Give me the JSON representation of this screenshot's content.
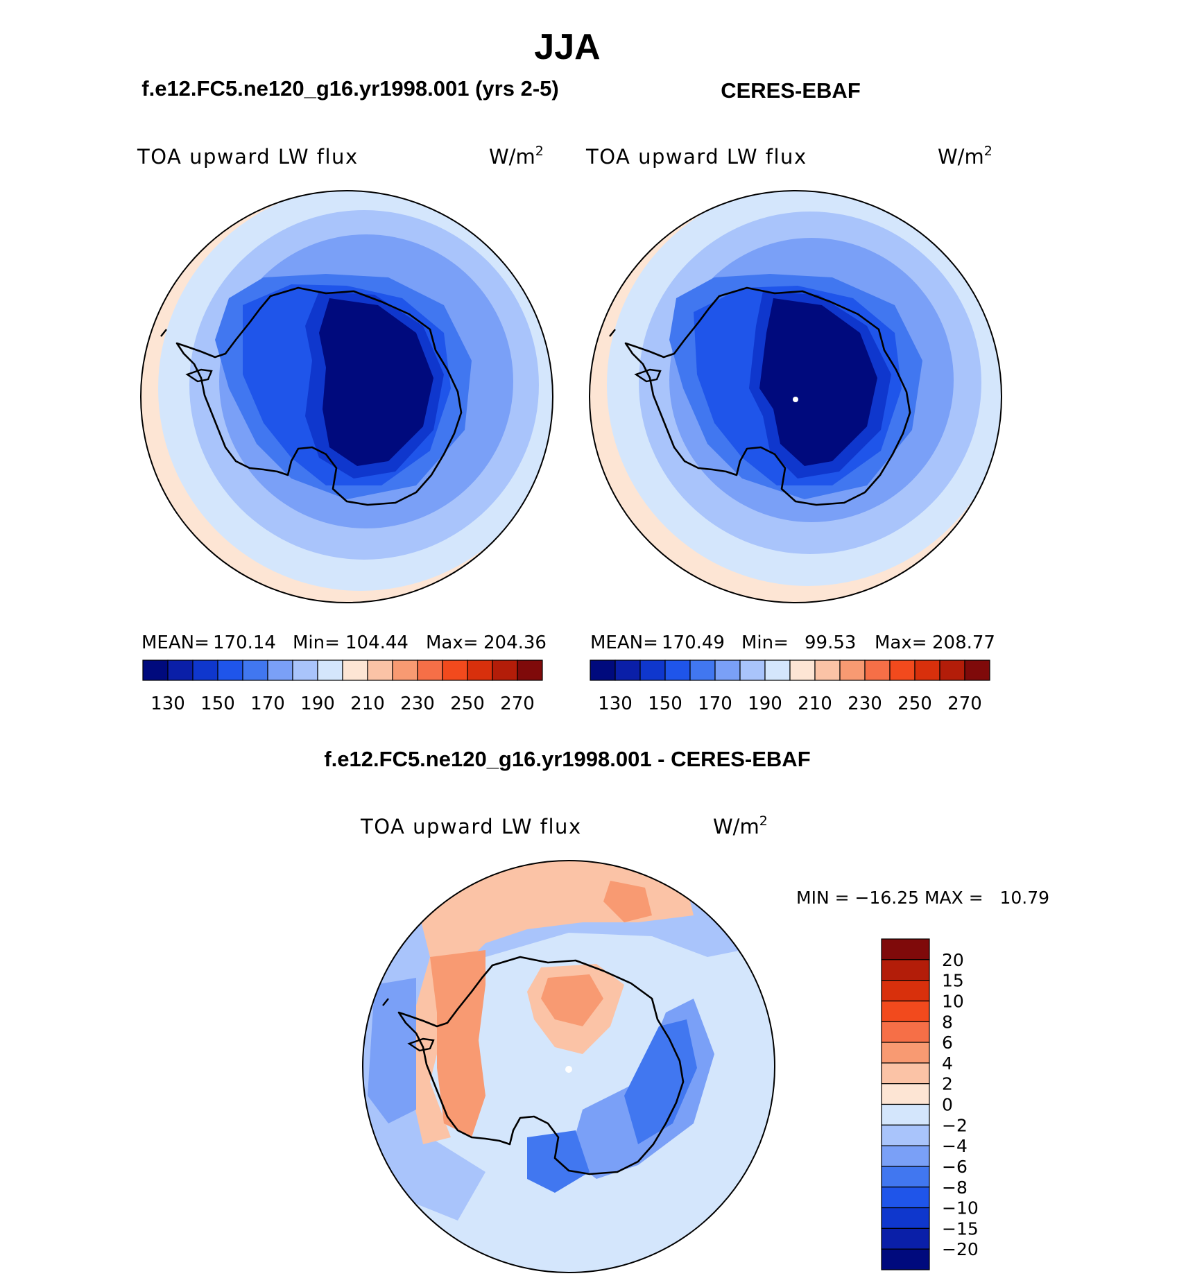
{
  "figure": {
    "season": "JJA",
    "diff_title": "f.e12.FC5.ne120_g16.yr1998.001 - CERES-EBAF"
  },
  "panels": [
    {
      "id": "model",
      "header": "f.e12.FC5.ne120_g16.yr1998.001 (yrs 2-5)",
      "variable": "TOA upward LW flux",
      "units_base": "W/m",
      "units_exp": "2",
      "stats": {
        "mean_label": "MEAN=",
        "mean": "170.14",
        "min_label": "Min=",
        "min": "104.44",
        "max_label": "Max=",
        "max": "204.36"
      }
    },
    {
      "id": "obs",
      "header": "CERES-EBAF",
      "variable": "TOA upward LW flux",
      "units_base": "W/m",
      "units_exp": "2",
      "stats": {
        "mean_label": "MEAN=",
        "mean": "170.49",
        "min_label": "Min=",
        "min": "99.53",
        "max_label": "Max=",
        "max": "208.77"
      }
    },
    {
      "id": "diff",
      "variable": "TOA upward LW flux",
      "units_base": "W/m",
      "units_exp": "2",
      "stats_text": "MIN = −16.25 MAX =   10.79"
    }
  ],
  "abs_colorbar": {
    "colors": [
      "#000a7d",
      "#0a1fa8",
      "#0f37cd",
      "#1f55ea",
      "#4177f0",
      "#7aa0f7",
      "#a9c4fb",
      "#d4e6fc",
      "#fde5d4",
      "#fbc3a6",
      "#f89a72",
      "#f66f47",
      "#f24a1d",
      "#d8300c",
      "#b31d09",
      "#7f0a0a"
    ],
    "ticks": [
      "130",
      "150",
      "170",
      "190",
      "210",
      "230",
      "250",
      "270"
    ]
  },
  "diff_colorbar": {
    "colors_top_to_bottom": [
      "#7f0a0a",
      "#b31d09",
      "#d8300c",
      "#f24a1d",
      "#f66f47",
      "#f89a72",
      "#fbc3a6",
      "#fde5d4",
      "#d4e6fc",
      "#a9c4fb",
      "#7aa0f7",
      "#4177f0",
      "#1f55ea",
      "#0f37cd",
      "#0a1fa8",
      "#000a7d"
    ],
    "ticks": [
      "20",
      "15",
      "10",
      "8",
      "6",
      "4",
      "2",
      "0",
      "−2",
      "−4",
      "−6",
      "−8",
      "−10",
      "−15",
      "−20"
    ]
  },
  "chart_data": [
    {
      "type": "heatmap",
      "title": "f.e12.FC5.ne120_g16.yr1998.001 (yrs 2-5)",
      "subtitle": "TOA upward LW flux",
      "units": "W/m2",
      "projection": "south polar stereographic",
      "mean": 170.14,
      "min": 104.44,
      "max": 204.36,
      "levels": [
        130,
        140,
        150,
        160,
        170,
        180,
        190,
        200,
        210,
        220,
        230,
        240,
        250,
        260,
        270
      ]
    },
    {
      "type": "heatmap",
      "title": "CERES-EBAF",
      "subtitle": "TOA upward LW flux",
      "units": "W/m2",
      "projection": "south polar stereographic",
      "mean": 170.49,
      "min": 99.53,
      "max": 208.77,
      "levels": [
        130,
        140,
        150,
        160,
        170,
        180,
        190,
        200,
        210,
        220,
        230,
        240,
        250,
        260,
        270
      ]
    },
    {
      "type": "heatmap",
      "title": "f.e12.FC5.ne120_g16.yr1998.001 - CERES-EBAF",
      "subtitle": "TOA upward LW flux",
      "units": "W/m2",
      "projection": "south polar stereographic",
      "min": -16.25,
      "max": 10.79,
      "levels": [
        -20,
        -15,
        -10,
        -8,
        -6,
        -4,
        -2,
        0,
        2,
        4,
        6,
        8,
        10,
        15,
        20
      ]
    }
  ]
}
